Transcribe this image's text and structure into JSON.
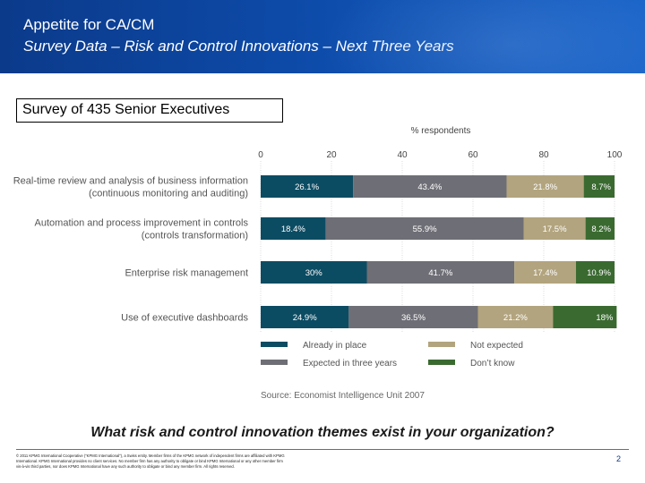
{
  "header": {
    "title": "Appetite for CA/CM",
    "subtitle": "Survey Data – Risk and Control Innovations – Next Three Years"
  },
  "survey_label": "Survey of 435 Senior Executives",
  "question": "What risk and control innovation themes exist in your organization?",
  "footer": {
    "legal": "© 2011 KPMG International Cooperative (“KPMG International”), a Swiss entity. Member firms of the KPMG network of independent firms are affiliated with KPMG International. KPMG International provides no client services. No member firm has any authority to obligate or bind KPMG International or any other member firm vis-à-vis third parties, nor does KPMG International have any such authority to obligate or bind any member firm. All rights reserved.",
    "page_number": "2"
  },
  "colors": {
    "already_in_place": "#0c4c63",
    "expected_in_three_years": "#6e6e76",
    "not_expected": "#b2a47e",
    "dont_know": "#3a6a30"
  },
  "chart_data": {
    "type": "bar",
    "orientation": "horizontal",
    "stacked": true,
    "xlabel": "% respondents",
    "xlim": [
      0,
      100
    ],
    "x_ticks": [
      "0",
      "20",
      "40",
      "60",
      "80",
      "100"
    ],
    "categories": [
      "Real-time review and analysis of business information|(continuous monitoring and auditing)",
      "Automation and process improvement in controls|(controls transformation)",
      "Enterprise risk management",
      "Use of executive dashboards"
    ],
    "series": [
      {
        "name": "Already in place",
        "values": [
          26.1,
          18.4,
          30,
          24.9
        ],
        "labels": [
          "26.1%",
          "18.4%",
          "30%",
          "24.9%"
        ]
      },
      {
        "name": "Expected in three years",
        "values": [
          43.4,
          55.9,
          41.7,
          36.5
        ],
        "labels": [
          "43.4%",
          "55.9%",
          "41.7%",
          "36.5%"
        ]
      },
      {
        "name": "Not expected",
        "values": [
          21.8,
          17.5,
          17.4,
          21.2
        ],
        "labels": [
          "21.8%",
          "17.5%",
          "17.4%",
          "21.2%"
        ]
      },
      {
        "name": "Don’t know",
        "values": [
          8.7,
          8.2,
          10.9,
          18
        ],
        "labels": [
          "8.7%",
          "8.2%",
          "10.9%",
          "18%"
        ]
      }
    ],
    "legend": {
      "placement": "bottom",
      "items": [
        "Already in place",
        "Not expected",
        "Expected in three years",
        "Don’t know"
      ]
    },
    "source": "Source: Economist Intelligence Unit 2007",
    "grid": true
  }
}
